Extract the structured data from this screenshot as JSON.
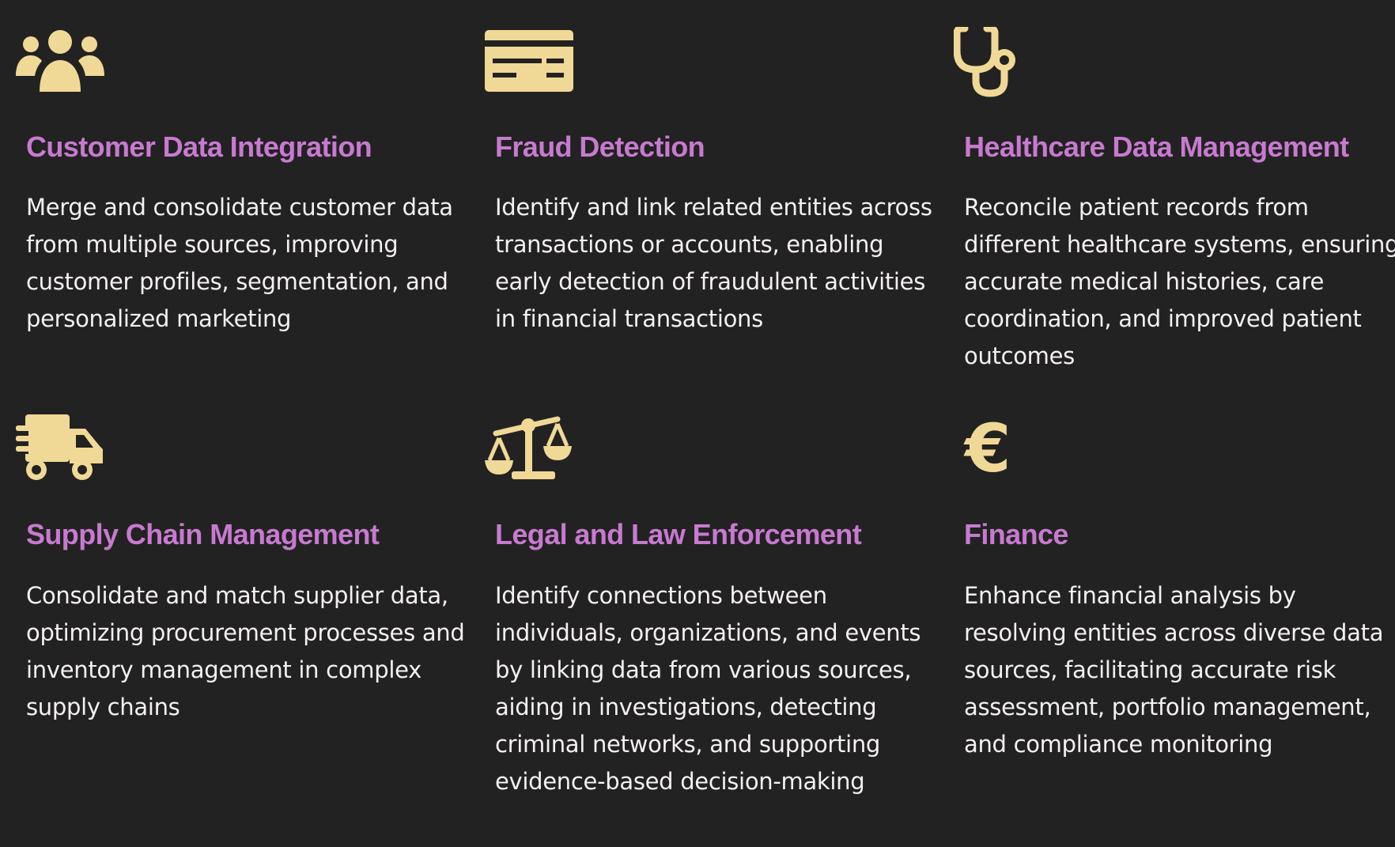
{
  "colors": {
    "background": "#232222",
    "icon": "#f0d996",
    "title": "#c77ad0",
    "text": "#f4f0f4"
  },
  "cards": [
    {
      "icon": "users-icon",
      "title": "Customer Data Integration",
      "description": "Merge and consolidate customer data from multiple sources, improving customer profiles, segmentation, and personalized marketing"
    },
    {
      "icon": "id-card-icon",
      "title": "Fraud Detection",
      "description": "Identify and link related entities across transactions or accounts, enabling early detection of fraudulent activities in financial transactions"
    },
    {
      "icon": "stethoscope-icon",
      "title": "Healthcare Data Management",
      "description": "Reconcile patient records from different healthcare systems, ensuring accurate medical histories, care coordination, and improved patient outcomes"
    },
    {
      "icon": "truck-icon",
      "title": "Supply Chain Management",
      "description": "Consolidate and match supplier data, optimizing procurement processes and inventory management in complex supply chains"
    },
    {
      "icon": "scale-icon",
      "title": "Legal and Law Enforcement",
      "description": "Identify connections between individuals, organizations, and events by linking data from various sources, aiding in investigations, detecting criminal networks, and supporting evidence-based decision-making"
    },
    {
      "icon": "euro-icon",
      "title": "Finance",
      "description": "Enhance financial analysis by resolving entities across diverse data sources, facilitating accurate risk assessment, portfolio management, and compliance monitoring"
    }
  ]
}
